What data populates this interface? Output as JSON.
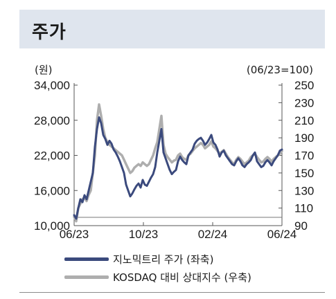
{
  "header": {
    "title": "주가"
  },
  "chart_data": {
    "type": "line",
    "left_unit": "(원)",
    "right_unit": "(06/23=100)",
    "y_left_ticks": [
      "34,000",
      "28,000",
      "22,000",
      "16,000",
      "10,000"
    ],
    "y_right_ticks": [
      "250",
      "230",
      "210",
      "190",
      "170",
      "150",
      "130",
      "110",
      "90"
    ],
    "x_ticks": [
      "06/23",
      "10/23",
      "02/24",
      "06/24"
    ],
    "ylim_left": [
      10000,
      34000
    ],
    "ylim_right": [
      90,
      250
    ],
    "x": [
      0,
      0.01,
      0.02,
      0.03,
      0.04,
      0.05,
      0.06,
      0.07,
      0.08,
      0.09,
      0.1,
      0.11,
      0.12,
      0.13,
      0.14,
      0.15,
      0.16,
      0.17,
      0.18,
      0.19,
      0.2,
      0.21,
      0.22,
      0.23,
      0.24,
      0.25,
      0.26,
      0.27,
      0.28,
      0.29,
      0.3,
      0.31,
      0.32,
      0.33,
      0.34,
      0.35,
      0.36,
      0.37,
      0.38,
      0.39,
      0.4,
      0.41,
      0.42,
      0.43,
      0.44,
      0.45,
      0.46,
      0.47,
      0.48,
      0.49,
      0.5,
      0.51,
      0.52,
      0.53,
      0.54,
      0.55,
      0.56,
      0.57,
      0.58,
      0.59,
      0.6,
      0.61,
      0.62,
      0.63,
      0.64,
      0.65,
      0.66,
      0.67,
      0.68,
      0.69,
      0.7,
      0.71,
      0.72,
      0.73,
      0.74,
      0.75,
      0.76,
      0.77,
      0.78,
      0.79,
      0.8,
      0.81,
      0.82,
      0.83,
      0.84,
      0.85,
      0.86,
      0.87,
      0.88,
      0.89,
      0.9,
      0.91,
      0.92,
      0.93,
      0.94,
      0.95,
      0.96,
      0.97,
      0.98,
      0.99,
      1.0
    ],
    "series": [
      {
        "name": "지노믹트리 주가 (좌축)",
        "color": "#3b4a7d",
        "axis": "left",
        "values": [
          11800,
          11200,
          13000,
          14500,
          14000,
          15200,
          14500,
          16000,
          17500,
          19000,
          23500,
          26500,
          28500,
          27500,
          25500,
          24800,
          23800,
          24500,
          24000,
          23000,
          22500,
          21800,
          21000,
          20000,
          19000,
          17000,
          16000,
          15000,
          15500,
          16200,
          16800,
          17200,
          16500,
          17800,
          17000,
          16800,
          17500,
          18200,
          18800,
          20000,
          22500,
          24500,
          26500,
          22500,
          21500,
          20500,
          19500,
          18800,
          19200,
          19500,
          21000,
          21800,
          21200,
          20800,
          20500,
          22000,
          22500,
          23000,
          24000,
          24500,
          24800,
          25000,
          24500,
          23800,
          24200,
          24800,
          25500,
          24200,
          23800,
          23000,
          21800,
          22500,
          22800,
          22000,
          21500,
          21000,
          20500,
          20300,
          21000,
          21500,
          21000,
          20300,
          20000,
          20500,
          20800,
          21200,
          22000,
          22500,
          21000,
          20500,
          20000,
          20200,
          20800,
          21200,
          20800,
          20300,
          21000,
          21500,
          22000,
          22800,
          23000
        ]
      },
      {
        "name": "KOSDAQ 대비 상대지수 (우축)",
        "color": "#aeaeae",
        "axis": "right",
        "values": [
          100,
          95,
          110,
          115,
          120,
          122,
          118,
          125,
          130,
          150,
          170,
          210,
          228,
          215,
          200,
          190,
          185,
          182,
          180,
          178,
          176,
          174,
          172,
          170,
          165,
          160,
          155,
          150,
          152,
          156,
          158,
          160,
          158,
          162,
          160,
          158,
          160,
          165,
          170,
          178,
          185,
          200,
          215,
          182,
          172,
          168,
          165,
          162,
          164,
          165,
          170,
          172,
          168,
          166,
          165,
          170,
          172,
          175,
          178,
          180,
          182,
          184,
          182,
          178,
          180,
          182,
          186,
          180,
          178,
          175,
          172,
          174,
          176,
          172,
          168,
          165,
          162,
          160,
          165,
          168,
          166,
          163,
          160,
          162,
          164,
          168,
          170,
          172,
          168,
          165,
          162,
          163,
          166,
          168,
          166,
          163,
          166,
          168,
          170,
          172,
          175
        ]
      }
    ]
  },
  "legend": {
    "items": [
      {
        "label": "지노믹트리 주가 (좌축)",
        "color": "#3b4a7d"
      },
      {
        "label": "KOSDAQ 대비 상대지수 (우축)",
        "color": "#aeaeae"
      }
    ]
  }
}
